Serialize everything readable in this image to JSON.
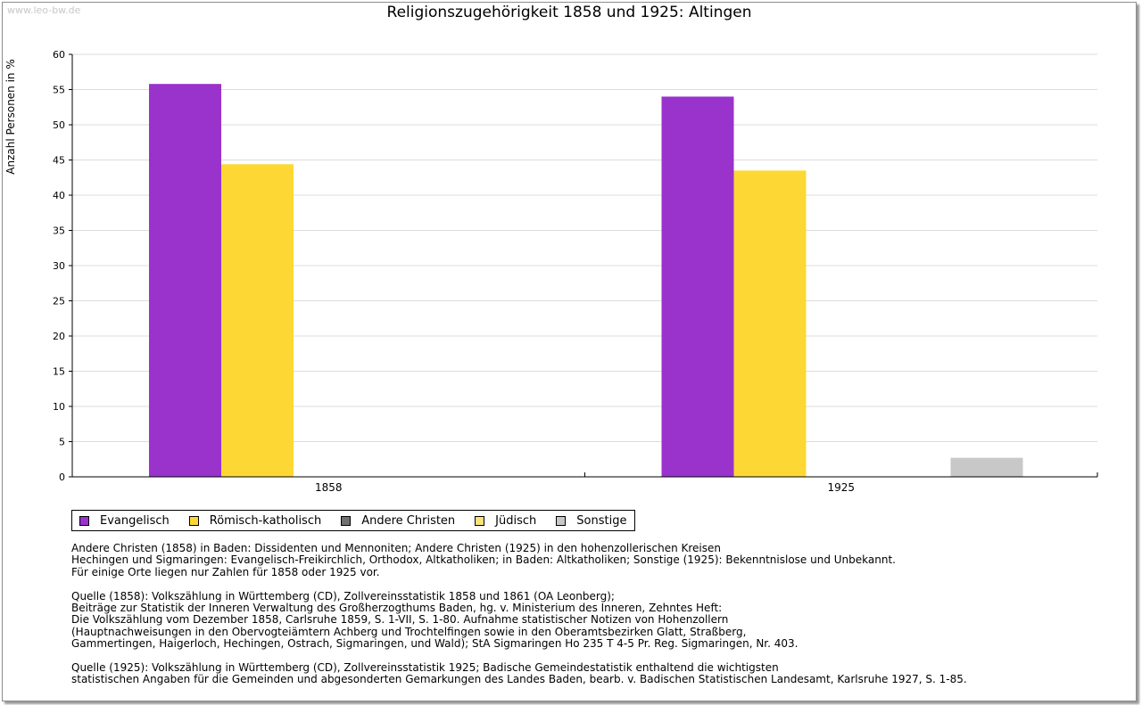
{
  "watermark": "www.leo-bw.de",
  "chart_data": {
    "type": "bar",
    "title": "Religionszugehörigkeit 1858 und 1925: Altingen",
    "ylabel": "Anzahl Personen in %",
    "xlabel": "",
    "ylim": [
      0,
      60
    ],
    "yticks": [
      0,
      5,
      10,
      15,
      20,
      25,
      30,
      35,
      40,
      45,
      50,
      55,
      60
    ],
    "grid": true,
    "legend_position": "bottom",
    "categories": [
      "1858",
      "1925"
    ],
    "series": [
      {
        "name": "Evangelisch",
        "color": "#9933cc",
        "values": [
          55.8,
          54.0
        ]
      },
      {
        "name": "Römisch-katholisch",
        "color": "#fdd835",
        "values": [
          44.4,
          43.5
        ]
      },
      {
        "name": "Andere Christen",
        "color": "#707070",
        "values": [
          0,
          0
        ]
      },
      {
        "name": "Jüdisch",
        "color": "#fde27a",
        "values": [
          0,
          0
        ]
      },
      {
        "name": "Sonstige",
        "color": "#c8c8c8",
        "values": [
          0,
          2.7
        ]
      }
    ]
  },
  "notes": [
    [
      "Andere Christen (1858) in Baden: Dissidenten und Mennoniten; Andere Christen (1925) in den hohenzollerischen Kreisen",
      "Hechingen und Sigmaringen: Evangelisch-Freikirchlich, Orthodox, Altkatholiken; in Baden: Altkatholiken; Sonstige (1925): Bekenntnislose und Unbekannt.",
      "Für einige Orte liegen nur Zahlen für 1858 oder 1925 vor."
    ],
    [
      "Quelle (1858): Volkszählung in Württemberg (CD), Zollvereinsstatistik 1858 und 1861 (OA Leonberg);",
      "Beiträge zur Statistik der Inneren Verwaltung des Großherzogthums Baden, hg. v. Ministerium des Inneren, Zehntes Heft:",
      "Die Volkszählung vom Dezember 1858, Carlsruhe 1859, S. 1-VII, S. 1-80. Aufnahme statistischer Notizen von Hohenzollern",
      "(Hauptnachweisungen in den Obervogteiämtern Achberg und Trochtelfingen sowie in den Oberamtsbezirken Glatt, Straßberg,",
      "Gammertingen, Haigerloch, Hechingen, Ostrach, Sigmaringen, und Wald); StA Sigmaringen Ho 235 T 4-5 Pr. Reg. Sigmaringen, Nr. 403."
    ],
    [
      "Quelle (1925): Volkszählung in Württemberg (CD), Zollvereinsstatistik 1925; Badische Gemeindestatistik enthaltend die wichtigsten",
      "statistischen Angaben für die Gemeinden und abgesonderten Gemarkungen des Landes Baden, bearb. v. Badischen Statistischen Landesamt, Karlsruhe 1927, S. 1-85."
    ]
  ]
}
